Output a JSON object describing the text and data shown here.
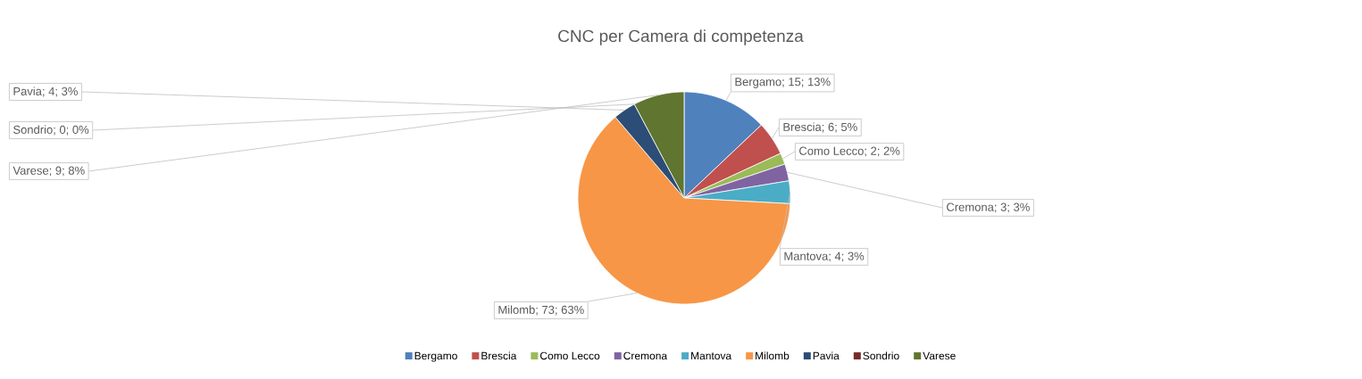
{
  "chart_data": {
    "type": "pie",
    "title": "CNC per Camera di competenza",
    "categories": [
      "Bergamo",
      "Brescia",
      "Como Lecco",
      "Cremona",
      "Mantova",
      "Milomb",
      "Pavia",
      "Sondrio",
      "Varese"
    ],
    "values": [
      15,
      6,
      2,
      3,
      4,
      73,
      4,
      0,
      9
    ],
    "colors": [
      "#4f81bd",
      "#c0504d",
      "#9bbb59",
      "#8064a2",
      "#4bacc6",
      "#f79646",
      "#2c4d75",
      "#772c2a",
      "#5f7530"
    ],
    "value_labels": [
      "Bergamo; 15; 13%",
      "Brescia; 6; 5%",
      "Como Lecco; 2; 2%",
      "Cremona; 3; 3%",
      "Mantova; 4; 3%",
      "Milomb; 73; 63%",
      "Pavia; 4; 3%",
      "Sondrio; 0; 0%",
      "Varese; 9; 8%"
    ],
    "legend": "bottom"
  }
}
